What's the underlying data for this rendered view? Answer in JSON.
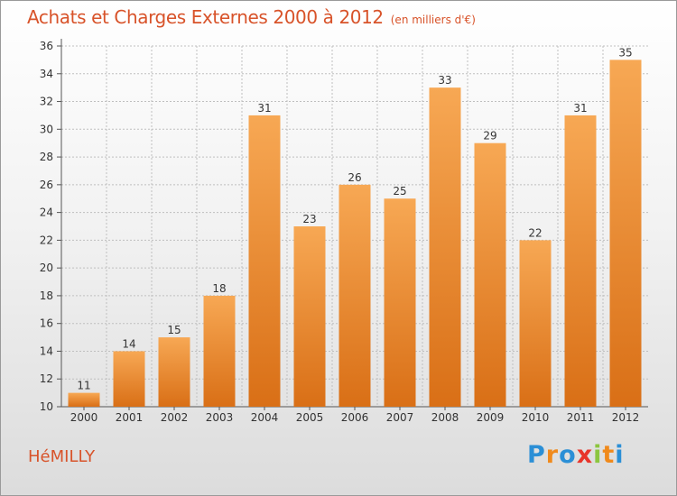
{
  "header": {
    "title": "Achats et Charges Externes 2000 à 2012",
    "subtitle": "(en milliers d'€)"
  },
  "footer": {
    "commune": "HéMILLY",
    "logo_letters": [
      {
        "ch": "P",
        "color": "#2b8fd6"
      },
      {
        "ch": "r",
        "color": "#f08a1c"
      },
      {
        "ch": "o",
        "color": "#2b8fd6"
      },
      {
        "ch": "x",
        "color": "#e8352a"
      },
      {
        "ch": "i",
        "color": "#8cc63f"
      },
      {
        "ch": "t",
        "color": "#f08a1c"
      },
      {
        "ch": "i",
        "color": "#2b8fd6"
      }
    ]
  },
  "colors": {
    "bar_light": "#f7a854",
    "bar_dark": "#d96f16",
    "grid": "#bfbfbf",
    "axis": "#555555"
  },
  "chart_data": {
    "type": "bar",
    "categories": [
      "2000",
      "2001",
      "2002",
      "2003",
      "2004",
      "2005",
      "2006",
      "2007",
      "2008",
      "2009",
      "2010",
      "2011",
      "2012"
    ],
    "values": [
      11,
      14,
      15,
      18,
      31,
      23,
      26,
      25,
      33,
      29,
      22,
      31,
      35
    ],
    "ylim": [
      10,
      36
    ],
    "yticks": [
      10,
      12,
      14,
      16,
      18,
      20,
      22,
      24,
      26,
      28,
      30,
      32,
      34,
      36
    ],
    "grid": true,
    "data_labels": true,
    "xlabel": "",
    "ylabel": ""
  }
}
